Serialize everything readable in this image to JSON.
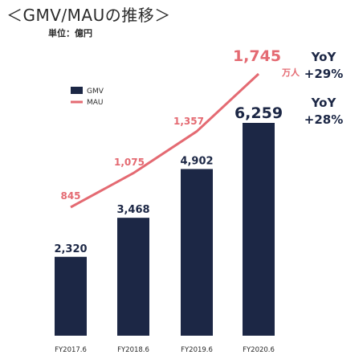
{
  "title": "＜GMV/MAUの推移＞",
  "unit_label": "単位：億円",
  "mau_unit": "万人",
  "colors": {
    "gmv": "#1c2745",
    "mau": "#e46a72",
    "text": "#2b2b2b"
  },
  "yoy": {
    "mau": {
      "label": "YoY",
      "value": "+29%"
    },
    "gmv": {
      "label": "YoY",
      "value": "+28%"
    }
  },
  "chart_data": {
    "type": "bar",
    "categories": [
      "FY2017.6",
      "FY2018.6",
      "FY2019.6",
      "FY2020.6"
    ],
    "series": [
      {
        "name": "GMV",
        "type": "bar",
        "values": [
          2320,
          3468,
          4902,
          6259
        ],
        "labels": [
          "2,320",
          "3,468",
          "4,902",
          "6,259"
        ]
      },
      {
        "name": "MAU",
        "type": "line",
        "values": [
          845,
          1075,
          1357,
          1745
        ],
        "labels": [
          "845",
          "1,075",
          "1,357",
          "1,745"
        ]
      }
    ],
    "legend": {
      "position": "top-left",
      "entries": [
        "GMV",
        "MAU"
      ]
    },
    "grid": false
  }
}
